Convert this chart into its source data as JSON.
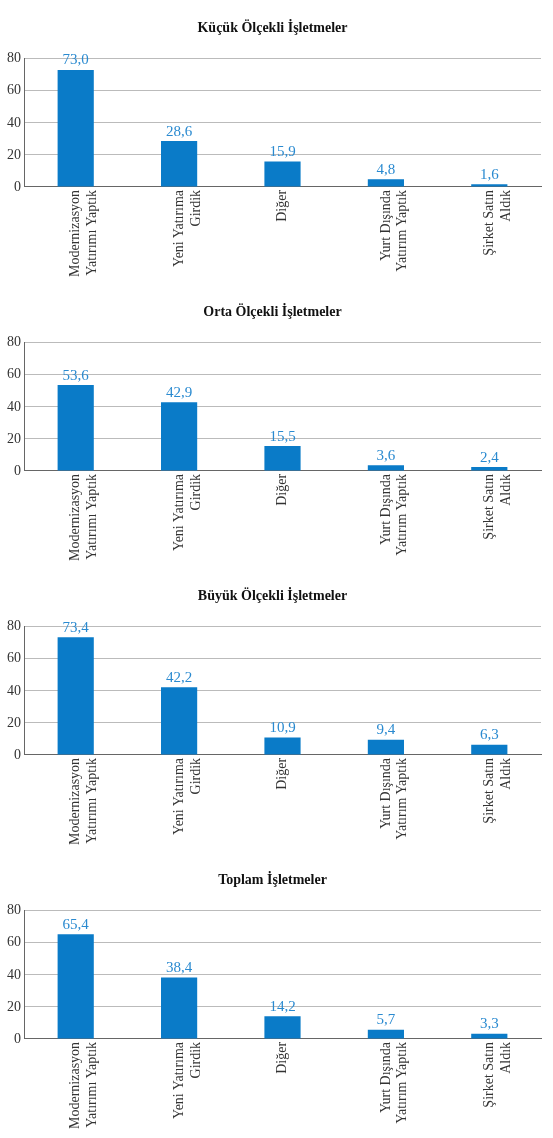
{
  "chart_data": [
    {
      "type": "bar",
      "title": "Küçük Ölçekli İşletmeler",
      "categories": [
        "Modernizasyon Yatırımı Yaptık",
        "Yeni Yatırıma Girdik",
        "Diğer",
        "Yurt Dışında Yatırım Yaptık",
        "Şirket Satın Aldık"
      ],
      "values": [
        73.0,
        28.6,
        15.9,
        4.8,
        1.6
      ],
      "value_labels": [
        "73,0",
        "28,6",
        "15,9",
        "4,8",
        "1,6"
      ],
      "color": "#0a7bc8",
      "ylim": [
        0,
        80
      ],
      "yticks": [
        0,
        20,
        40,
        60,
        80
      ],
      "grid": "y"
    },
    {
      "type": "bar",
      "title": "Orta Ölçekli İşletmeler",
      "categories": [
        "Modernizasyon Yatırımı Yaptık",
        "Yeni Yatırıma Girdik",
        "Diğer",
        "Yurt Dışında Yatırım Yaptık",
        "Şirket Satın Aldık"
      ],
      "values": [
        53.6,
        42.9,
        15.5,
        3.6,
        2.4
      ],
      "value_labels": [
        "53,6",
        "42,9",
        "15,5",
        "3,6",
        "2,4"
      ],
      "color": "#0a7bc8",
      "ylim": [
        0,
        80
      ],
      "yticks": [
        0,
        20,
        40,
        60,
        80
      ],
      "grid": "y"
    },
    {
      "type": "bar",
      "title": "Büyük Ölçekli İşletmeler",
      "categories": [
        "Modernizasyon Yatırımı Yaptık",
        "Yeni Yatırıma Girdik",
        "Diğer",
        "Yurt Dışında Yatırım Yaptık",
        "Şirket Satın Aldık"
      ],
      "values": [
        73.4,
        42.2,
        10.9,
        9.4,
        6.3
      ],
      "value_labels": [
        "73,4",
        "42,2",
        "10,9",
        "9,4",
        "6,3"
      ],
      "color": "#0a7bc8",
      "ylim": [
        0,
        80
      ],
      "yticks": [
        0,
        20,
        40,
        60,
        80
      ],
      "grid": "y"
    },
    {
      "type": "bar",
      "title": "Toplam İşletmeler",
      "categories": [
        "Modernizasyon Yatırımı Yaptık",
        "Yeni Yatırıma Girdik",
        "Diğer",
        "Yurt Dışında Yatırım Yaptık",
        "Şirket Satın Aldık"
      ],
      "values": [
        65.4,
        38.4,
        14.2,
        5.7,
        3.3
      ],
      "value_labels": [
        "65,4",
        "38,4",
        "14,2",
        "5,7",
        "3,3"
      ],
      "color": "#0a7bc8",
      "ylim": [
        0,
        80
      ],
      "yticks": [
        0,
        20,
        40,
        60,
        80
      ],
      "grid": "y"
    }
  ]
}
